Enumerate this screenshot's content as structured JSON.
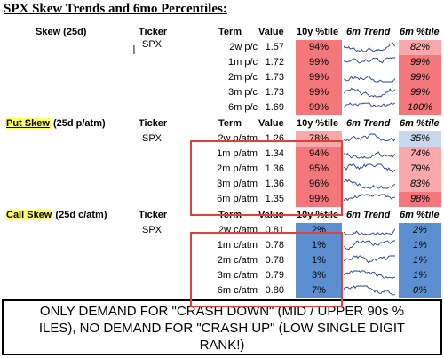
{
  "title": "SPX Skew Trends and 6mo Percentiles:",
  "colors": {
    "red_high": "#f4777c",
    "red_mid": "#f9a8ab",
    "red_light": "#fcd2d3",
    "blue_high": "#5b8fd0",
    "blue_light": "#c9d7ec",
    "box_border": "#e0403a",
    "highlight": "#ffff66",
    "spark": "#1f3f8f"
  },
  "sections": [
    {
      "label_main": "Skew (25d)",
      "label_sub": "",
      "highlight": false,
      "headers": {
        "ticker": "Ticker",
        "term": "Term",
        "value": "Value",
        "pct10": "10y %tile",
        "trend": "6m Trend",
        "pct6": "6m %tile"
      },
      "ticker": "SPX",
      "rows": [
        {
          "term": "2w p/c",
          "value": "1.57",
          "pct10": "94%",
          "pct10_level": 0.94,
          "pct6": "82%",
          "pct6_level": 0.82
        },
        {
          "term": "1m p/c",
          "value": "1.72",
          "pct10": "99%",
          "pct10_level": 0.99,
          "pct6": "99%",
          "pct6_level": 0.99
        },
        {
          "term": "2m p/c",
          "value": "1.73",
          "pct10": "99%",
          "pct10_level": 0.99,
          "pct6": "99%",
          "pct6_level": 0.99
        },
        {
          "term": "3m p/c",
          "value": "1.73",
          "pct10": "99%",
          "pct10_level": 0.99,
          "pct6": "99%",
          "pct6_level": 0.99
        },
        {
          "term": "6m p/c",
          "value": "1.69",
          "pct10": "99%",
          "pct10_level": 0.99,
          "pct6": "100%",
          "pct6_level": 1.0
        }
      ]
    },
    {
      "label_main": "Put Skew",
      "label_sub": " (25d p/atm)",
      "highlight": true,
      "headers": {
        "ticker": "Ticker",
        "term": "Term",
        "value": "Value",
        "pct10": "10y %tile",
        "trend": "6m Trend",
        "pct6": "6m %tile"
      },
      "ticker": "SPX",
      "rows": [
        {
          "term": "2w p/atm",
          "value": "1.26",
          "pct10": "78%",
          "pct10_level": 0.78,
          "pct6": "35%",
          "pct6_level": 0.35
        },
        {
          "term": "1m p/atm",
          "value": "1.34",
          "pct10": "94%",
          "pct10_level": 0.94,
          "pct6": "74%",
          "pct6_level": 0.74
        },
        {
          "term": "2m p/atm",
          "value": "1.36",
          "pct10": "95%",
          "pct10_level": 0.95,
          "pct6": "79%",
          "pct6_level": 0.79
        },
        {
          "term": "3m p/atm",
          "value": "1.36",
          "pct10": "96%",
          "pct10_level": 0.96,
          "pct6": "83%",
          "pct6_level": 0.83
        },
        {
          "term": "6m p/atm",
          "value": "1.35",
          "pct10": "99%",
          "pct10_level": 0.99,
          "pct6": "98%",
          "pct6_level": 0.98
        }
      ]
    },
    {
      "label_main": "Call Skew",
      "label_sub": " (25d c/atm)",
      "highlight": true,
      "headers": {
        "ticker": "Ticker",
        "term": "Term",
        "value": "Value",
        "pct10": "10y %tile",
        "trend": "6m Trend",
        "pct6": "6m %tile"
      },
      "ticker": "SPX",
      "rows": [
        {
          "term": "2w c/atm",
          "value": "0.81",
          "pct10": "2%",
          "pct10_level": 0.02,
          "pct6": "2%",
          "pct6_level": 0.02
        },
        {
          "term": "1m c/atm",
          "value": "0.78",
          "pct10": "1%",
          "pct10_level": 0.01,
          "pct6": "1%",
          "pct6_level": 0.01
        },
        {
          "term": "2m c/atm",
          "value": "0.78",
          "pct10": "1%",
          "pct10_level": 0.01,
          "pct6": "1%",
          "pct6_level": 0.01
        },
        {
          "term": "3m c/atm",
          "value": "0.79",
          "pct10": "3%",
          "pct10_level": 0.03,
          "pct6": "1%",
          "pct6_level": 0.01
        },
        {
          "term": "6m c/atm",
          "value": "0.80",
          "pct10": "7%",
          "pct10_level": 0.07,
          "pct6": "0%",
          "pct6_level": 0.0
        }
      ]
    }
  ],
  "banner": {
    "line1": "ONLY DEMAND FOR \"CRASH DOWN\" (MID / UPPER 90s %",
    "line2": "ILES), NO DEMAND FOR \"CRASH UP\" (LOW SINGLE DIGIT",
    "line3": "RANK!)"
  }
}
